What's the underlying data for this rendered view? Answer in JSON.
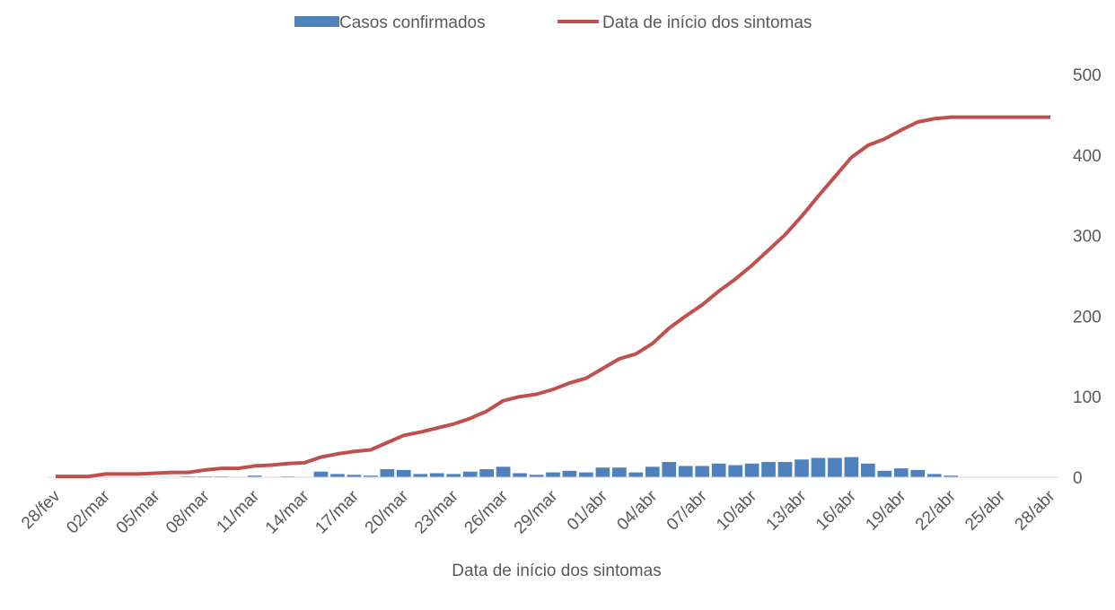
{
  "chart_data": {
    "type": "bar_line",
    "xlabel": "Data de início dos sintomas",
    "categories": [
      "28/fev",
      null,
      null,
      "02/mar",
      null,
      null,
      "05/mar",
      null,
      null,
      "08/mar",
      null,
      null,
      "11/mar",
      null,
      null,
      "14/mar",
      null,
      null,
      "17/mar",
      null,
      null,
      "20/mar",
      null,
      null,
      "23/mar",
      null,
      null,
      "26/mar",
      null,
      null,
      "29/mar",
      null,
      null,
      "01/abr",
      null,
      null,
      "04/abr",
      null,
      null,
      "07/abr",
      null,
      null,
      "10/abr",
      null,
      null,
      "13/abr",
      null,
      null,
      "16/abr",
      null,
      null,
      "19/abr",
      null,
      null,
      "22/abr",
      null,
      null,
      "25/abr",
      null,
      null,
      "28/abr"
    ],
    "series": [
      {
        "name": "Casos confirmados",
        "color": "#4f81bd",
        "kind": "bar",
        "values": [
          0,
          0,
          0,
          0,
          0,
          0,
          0,
          0,
          1,
          1,
          1,
          0,
          2,
          0,
          1,
          0,
          7,
          4,
          3,
          2,
          10,
          9,
          4,
          5,
          4,
          7,
          10,
          13,
          5,
          3,
          6,
          8,
          6,
          12,
          12,
          6,
          13,
          19,
          14,
          14,
          17,
          15,
          17,
          19,
          19,
          22,
          24,
          24,
          25,
          17,
          8,
          11,
          9,
          4,
          2,
          0,
          0,
          0,
          0,
          0,
          0
        ]
      },
      {
        "name": "Data de início dos sintomas",
        "color": "#c0504d",
        "kind": "line",
        "values": [
          1,
          1,
          1,
          4,
          4,
          4,
          5,
          6,
          6,
          9,
          11,
          11,
          14,
          15,
          17,
          18,
          25,
          29,
          32,
          34,
          43,
          52,
          56,
          61,
          66,
          73,
          82,
          95,
          100,
          103,
          109,
          117,
          123,
          135,
          147,
          153,
          166,
          185,
          200,
          214,
          231,
          246,
          263,
          282,
          301,
          324,
          349,
          373,
          397,
          412,
          420,
          431,
          441,
          445,
          447,
          447,
          447,
          447,
          447,
          447,
          447
        ]
      }
    ],
    "ylim": [
      0,
      500
    ],
    "yticks": [
      0,
      100,
      200,
      300,
      400,
      500
    ],
    "grid": false,
    "legend": "top"
  }
}
